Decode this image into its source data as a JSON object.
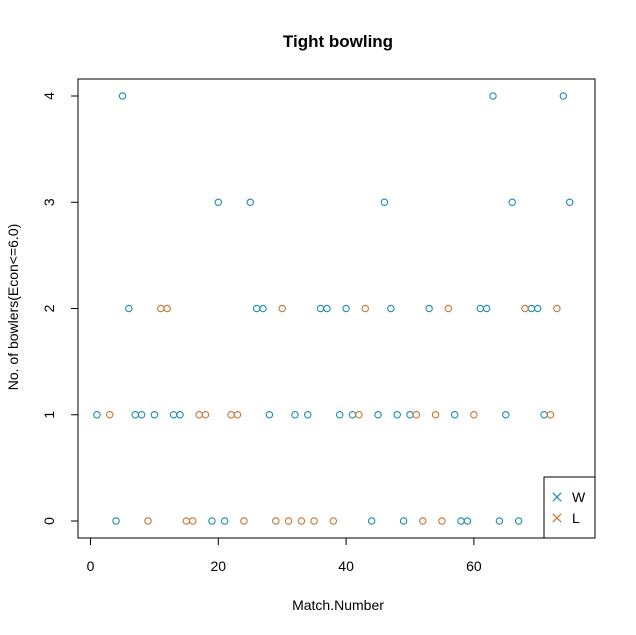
{
  "chart_data": {
    "type": "scatter",
    "title": "Tight bowling",
    "xlabel": "Match.Number",
    "ylabel": "No. of bowlers(Econ<=6.0)",
    "xlim": [
      -1.96,
      78.96
    ],
    "ylim": [
      -0.16,
      4.16
    ],
    "x_ticks": [
      "0",
      "20",
      "40",
      "60"
    ],
    "y_ticks": [
      "0",
      "1",
      "2",
      "3",
      "4"
    ],
    "grid": false,
    "legend_position": "bottom-right",
    "series": [
      {
        "name": "W",
        "color": "#1b8ea8",
        "marker": "circle",
        "points": [
          [
            1,
            1
          ],
          [
            4,
            0
          ],
          [
            5,
            4
          ],
          [
            6,
            2
          ],
          [
            7,
            1
          ],
          [
            8,
            1
          ],
          [
            10,
            1
          ],
          [
            13,
            1
          ],
          [
            14,
            1
          ],
          [
            19,
            0
          ],
          [
            20,
            3
          ],
          [
            21,
            0
          ],
          [
            25,
            3
          ],
          [
            26,
            2
          ],
          [
            27,
            2
          ],
          [
            28,
            1
          ],
          [
            32,
            1
          ],
          [
            34,
            1
          ],
          [
            36,
            2
          ],
          [
            37,
            2
          ],
          [
            39,
            1
          ],
          [
            40,
            2
          ],
          [
            41,
            1
          ],
          [
            44,
            0
          ],
          [
            45,
            1
          ],
          [
            46,
            3
          ],
          [
            47,
            2
          ],
          [
            48,
            1
          ],
          [
            49,
            0
          ],
          [
            50,
            1
          ],
          [
            53,
            2
          ],
          [
            57,
            1
          ],
          [
            58,
            0
          ],
          [
            59,
            0
          ],
          [
            61,
            2
          ],
          [
            62,
            2
          ],
          [
            63,
            4
          ],
          [
            64,
            0
          ],
          [
            65,
            1
          ],
          [
            66,
            3
          ],
          [
            67,
            0
          ],
          [
            69,
            2
          ],
          [
            70,
            2
          ],
          [
            71,
            1
          ],
          [
            74,
            4
          ],
          [
            75,
            3
          ]
        ]
      },
      {
        "name": "L",
        "color": "#c87530",
        "marker": "circle",
        "points": [
          [
            3,
            1
          ],
          [
            9,
            0
          ],
          [
            11,
            2
          ],
          [
            12,
            2
          ],
          [
            15,
            0
          ],
          [
            16,
            0
          ],
          [
            17,
            1
          ],
          [
            18,
            1
          ],
          [
            22,
            1
          ],
          [
            23,
            1
          ],
          [
            24,
            0
          ],
          [
            29,
            0
          ],
          [
            30,
            2
          ],
          [
            31,
            0
          ],
          [
            33,
            0
          ],
          [
            35,
            0
          ],
          [
            38,
            0
          ],
          [
            42,
            1
          ],
          [
            43,
            2
          ],
          [
            51,
            1
          ],
          [
            52,
            0
          ],
          [
            54,
            1
          ],
          [
            55,
            0
          ],
          [
            56,
            2
          ],
          [
            60,
            1
          ],
          [
            68,
            2
          ],
          [
            72,
            1
          ],
          [
            73,
            2
          ]
        ]
      }
    ]
  }
}
